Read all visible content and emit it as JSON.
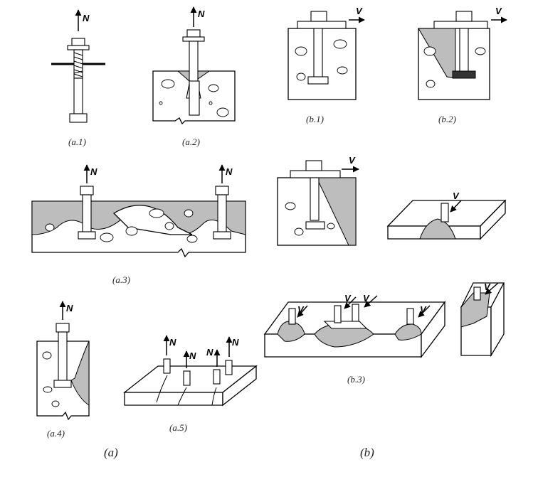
{
  "labels": {
    "a1": "(a.1)",
    "a2": "(a.2)",
    "a3": "(a.3)",
    "a4": "(a.4)",
    "a5": "(a.5)",
    "b1": "(b.1)",
    "b2": "(b.2)",
    "b3": "(b.3)",
    "a": "(a)",
    "b": "(b)"
  },
  "forces": {
    "tension": "N",
    "shear": "V"
  }
}
